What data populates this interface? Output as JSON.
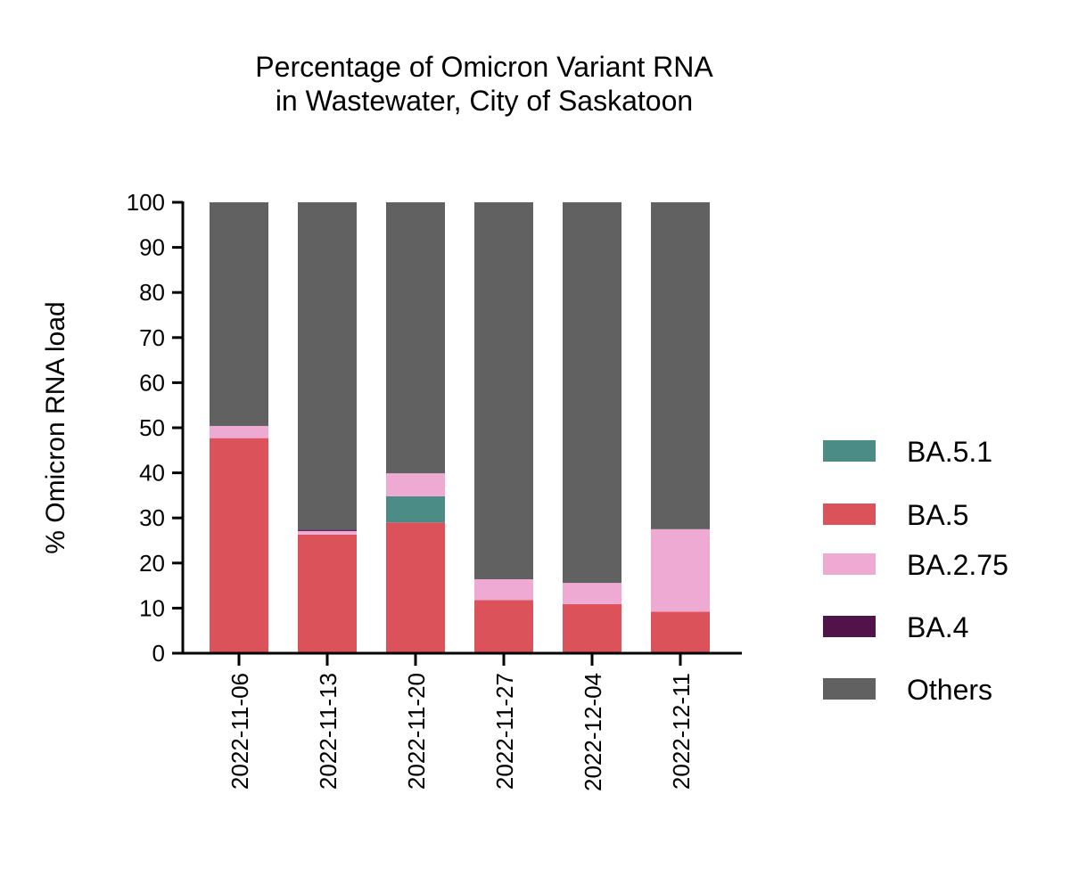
{
  "chart_data": {
    "type": "bar",
    "stacked": true,
    "title": [
      "Percentage of Omicron Variant RNA",
      "in Wastewater, City of Saskatoon"
    ],
    "xlabel": "",
    "ylabel": "% Omicron RNA load",
    "ylim": [
      0,
      100
    ],
    "yticks": [
      0,
      10,
      20,
      30,
      40,
      50,
      60,
      70,
      80,
      90,
      100
    ],
    "grid": false,
    "legend_position": "right",
    "categories": [
      "2022-11-06",
      "2022-11-13",
      "2022-11-20",
      "2022-11-27",
      "2022-12-04",
      "2022-12-11"
    ],
    "series": [
      {
        "name": "BA.5",
        "color": "#db525a",
        "values": [
          47.7,
          26.3,
          29.0,
          11.8,
          10.9,
          9.2
        ]
      },
      {
        "name": "BA.5.1",
        "color": "#4b8c87",
        "values": [
          0,
          0,
          5.8,
          0,
          0,
          0
        ]
      },
      {
        "name": "BA.2.75",
        "color": "#eeaad3",
        "values": [
          2.7,
          0.8,
          5.1,
          4.6,
          4.7,
          18.3
        ]
      },
      {
        "name": "BA.4",
        "color": "#52124a",
        "values": [
          0,
          0.3,
          0,
          0,
          0,
          0
        ]
      },
      {
        "name": "Others",
        "color": "#616161",
        "values": [
          49.6,
          72.6,
          60.1,
          83.6,
          84.4,
          72.5
        ]
      }
    ],
    "legend_order": [
      "BA.5.1",
      "BA.5",
      "BA.2.75",
      "BA.4",
      "Others"
    ]
  }
}
